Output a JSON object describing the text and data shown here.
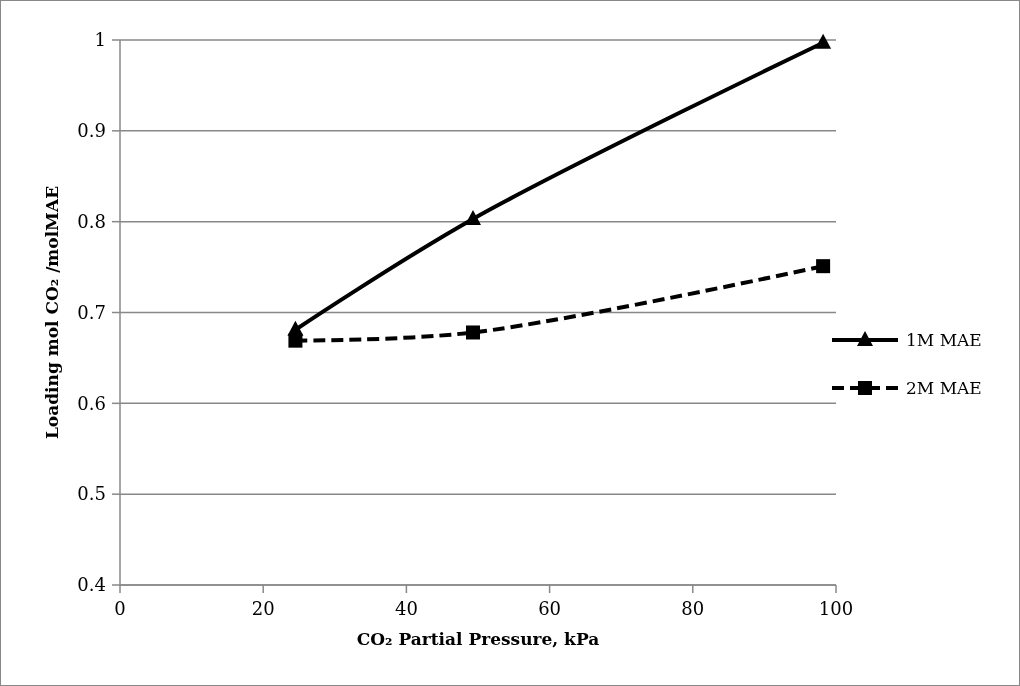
{
  "chart_data": {
    "type": "line",
    "xlabel": "CO₂ Partial Pressure, kPa",
    "ylabel": "Loading mol CO₂ /molMAE",
    "xlim": [
      0,
      100
    ],
    "xticks": [
      0,
      20,
      40,
      60,
      80,
      100
    ],
    "ylim": [
      0.4,
      1
    ],
    "yticks": [
      0.4,
      0.5,
      0.6,
      0.7,
      0.8,
      0.9,
      1
    ],
    "grid": "y",
    "legend": "right",
    "series": [
      {
        "name": "1M MAE",
        "color": "#000000",
        "x": [
          24.5,
          49.3,
          98.2
        ],
        "values": [
          0.681,
          0.803,
          0.997
        ],
        "marker": "triangle",
        "line_style": "solid"
      },
      {
        "name": "2M MAE",
        "color": "#000000",
        "x": [
          24.5,
          49.3,
          98.2
        ],
        "values": [
          0.669,
          0.678,
          0.751
        ],
        "marker": "square",
        "line_style": "dashed"
      }
    ]
  }
}
